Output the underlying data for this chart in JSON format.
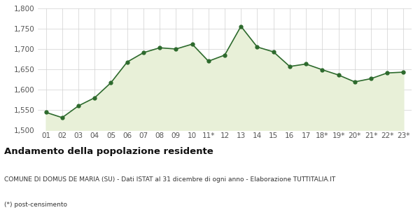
{
  "x_labels": [
    "01",
    "02",
    "03",
    "04",
    "05",
    "06",
    "07",
    "08",
    "09",
    "10",
    "11*",
    "12",
    "13",
    "14",
    "15",
    "16",
    "17",
    "18*",
    "19*",
    "20*",
    "21*",
    "22*",
    "23*"
  ],
  "values": [
    1544,
    1531,
    1560,
    1580,
    1617,
    1668,
    1691,
    1703,
    1700,
    1712,
    1670,
    1685,
    1756,
    1705,
    1693,
    1657,
    1663,
    1649,
    1636,
    1619,
    1627,
    1641,
    1643
  ],
  "line_color": "#2d6a2d",
  "fill_color": "#e8f0d8",
  "marker_color": "#2d6a2d",
  "bg_color": "#ffffff",
  "grid_color": "#d0d0d0",
  "ylim": [
    1500,
    1800
  ],
  "yticks": [
    1500,
    1550,
    1600,
    1650,
    1700,
    1750,
    1800
  ],
  "title": "Andamento della popolazione residente",
  "subtitle": "COMUNE DI DOMUS DE MARIA (SU) - Dati ISTAT al 31 dicembre di ogni anno - Elaborazione TUTTITALIA.IT",
  "footnote": "(*) post-censimento",
  "title_fontsize": 9.5,
  "subtitle_fontsize": 6.5,
  "footnote_fontsize": 6.5,
  "tick_fontsize": 7.5
}
